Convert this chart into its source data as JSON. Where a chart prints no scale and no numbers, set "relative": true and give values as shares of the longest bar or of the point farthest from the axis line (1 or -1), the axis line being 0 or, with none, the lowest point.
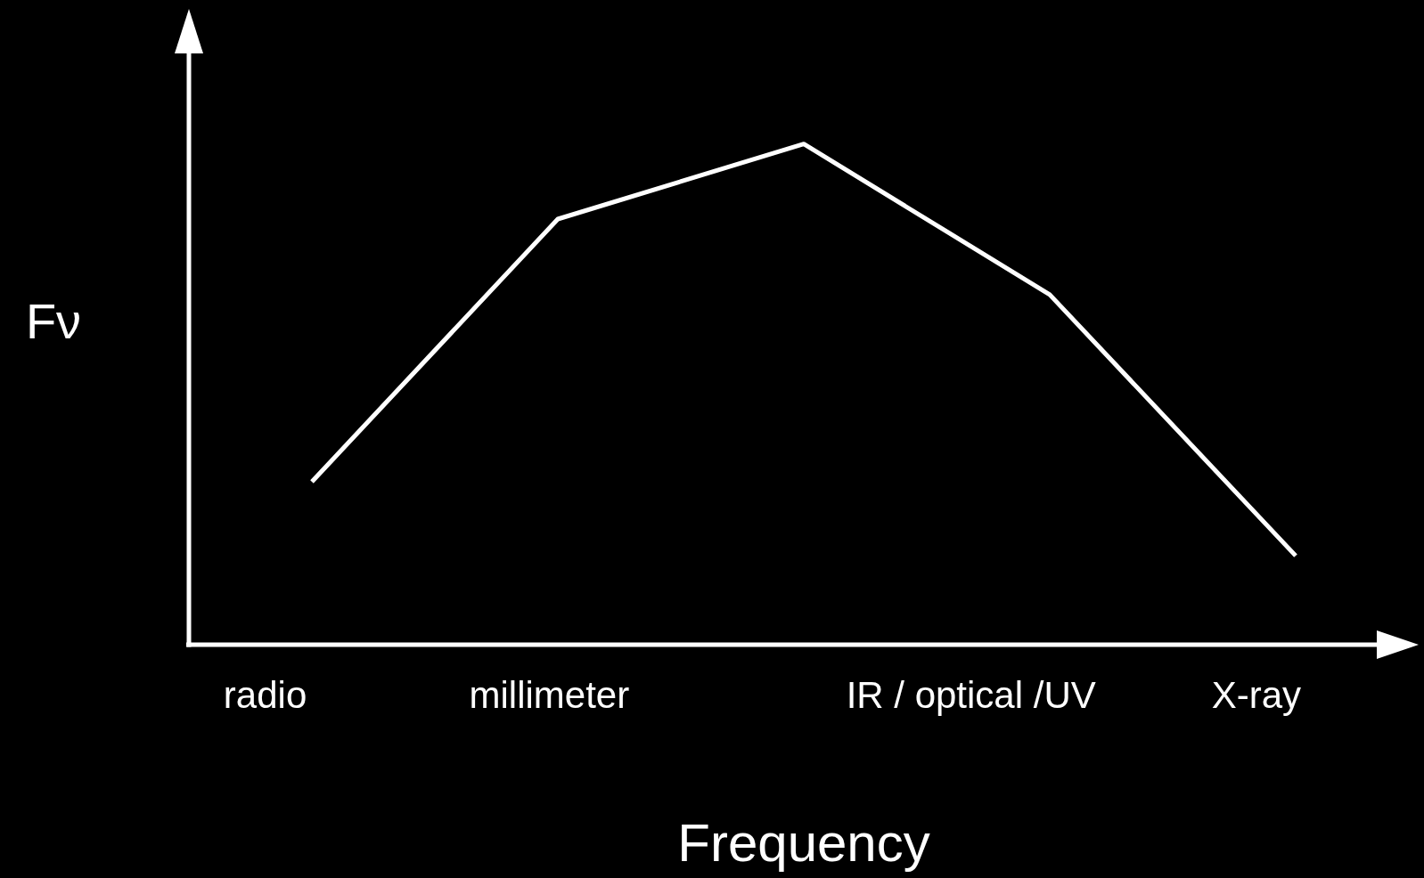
{
  "chart_data": {
    "type": "line",
    "relative": true,
    "xlabel": "Frequency",
    "ylabel": "Fν",
    "categories": [
      null,
      null,
      null,
      null,
      null
    ],
    "annotations": [
      "radio",
      "millimeter",
      "IR / optical /UV",
      "X-ray"
    ],
    "series": [
      {
        "color": "#ffffff",
        "values": [
          0.325,
          0.85,
          1,
          0.699,
          0.177
        ]
      }
    ],
    "legend": false,
    "marker": "none",
    "line_style": "solid"
  }
}
